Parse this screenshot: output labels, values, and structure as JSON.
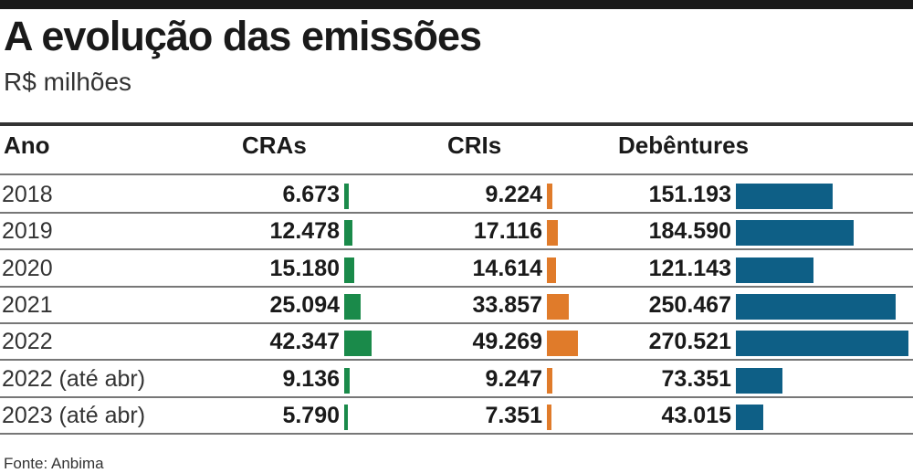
{
  "chart_data": {
    "type": "table",
    "title": "A evolução das emissões",
    "subtitle": "R$ milhões",
    "columns": [
      "Ano",
      "CRAs",
      "CRIs",
      "Debêntures"
    ],
    "colors": {
      "CRAs": "#1a8a4a",
      "CRIs": "#e07b2a",
      "Debêntures": "#0e5f86"
    },
    "rows": [
      {
        "ano": "2018",
        "cras": "6.673",
        "cris": "9.224",
        "deb": "151.193",
        "v": [
          6673,
          9224,
          151193
        ]
      },
      {
        "ano": "2019",
        "cras": "12.478",
        "cris": "17.116",
        "deb": "184.590",
        "v": [
          12478,
          17116,
          184590
        ]
      },
      {
        "ano": "2020",
        "cras": "15.180",
        "cris": "14.614",
        "deb": "121.143",
        "v": [
          15180,
          14614,
          121143
        ]
      },
      {
        "ano": "2021",
        "cras": "25.094",
        "cris": "33.857",
        "deb": "250.467",
        "v": [
          25094,
          33857,
          250467
        ]
      },
      {
        "ano": "2022",
        "cras": "42.347",
        "cris": "49.269",
        "deb": "270.521",
        "v": [
          42347,
          49269,
          270521
        ]
      },
      {
        "ano": "2022 (até abr)",
        "cras": "9.136",
        "cris": "9.247",
        "deb": "73.351",
        "v": [
          9136,
          9247,
          73351
        ]
      },
      {
        "ano": "2023 (até abr)",
        "cras": "5.790",
        "cris": "7.351",
        "deb": "43.015",
        "v": [
          5790,
          7351,
          43015
        ]
      }
    ],
    "source": "Fonte: Anbima"
  }
}
